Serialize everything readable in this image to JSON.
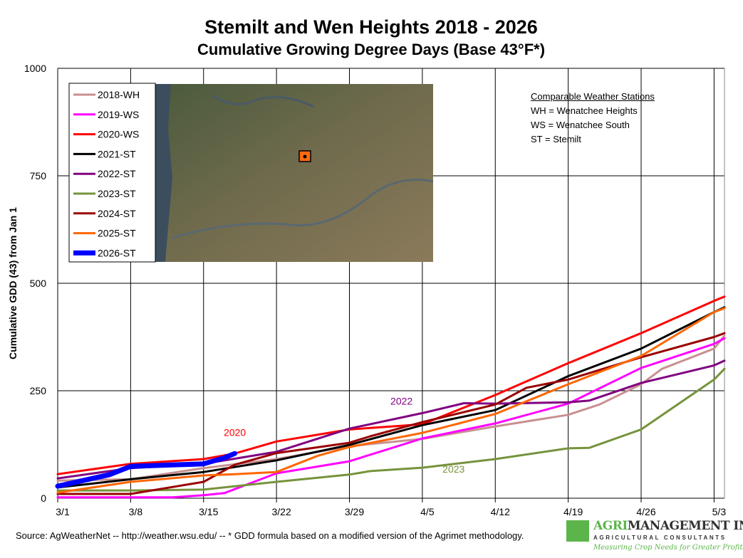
{
  "chart_data": {
    "type": "line",
    "title": "Stemilt and Wen Heights 2018 - 2026",
    "subtitle": "Cumulative Growing Degree Days (Base 43°F*)",
    "ylabel": "Cumulative GDD (43) from Jan 1",
    "xlabel": "",
    "ylim": [
      0,
      1000
    ],
    "yticks": [
      0,
      250,
      500,
      750,
      1000
    ],
    "xlim": [
      "3/1",
      "5/4"
    ],
    "xticks": [
      "3/1",
      "3/8",
      "3/15",
      "3/22",
      "3/29",
      "4/5",
      "4/12",
      "4/19",
      "4/26",
      "5/3"
    ],
    "grid": true,
    "legend_placement": "top-left",
    "series": [
      {
        "name": "2018-WH",
        "color": "#C89090",
        "width": 3,
        "x": [
          "3/1",
          "3/8",
          "3/15",
          "3/22",
          "3/29",
          "4/5",
          "4/12",
          "4/19",
          "4/22",
          "4/26",
          "4/28",
          "5/3",
          "5/4"
        ],
        "y": [
          41,
          44,
          70,
          91,
          121,
          138,
          167,
          194,
          218,
          265,
          301,
          348,
          378
        ]
      },
      {
        "name": "2019-WS",
        "color": "#FF00FF",
        "width": 3,
        "x": [
          "3/1",
          "3/12",
          "3/15",
          "3/17",
          "3/22",
          "3/29",
          "4/5",
          "4/12",
          "4/19",
          "4/26",
          "5/3",
          "5/4"
        ],
        "y": [
          2,
          2,
          7,
          12,
          58,
          86,
          139,
          174,
          220,
          303,
          359,
          372
        ]
      },
      {
        "name": "2020-WS",
        "color": "#FF0000",
        "width": 3,
        "x": [
          "3/1",
          "3/8",
          "3/15",
          "3/18",
          "3/22",
          "3/29",
          "4/5",
          "4/12",
          "4/19",
          "4/26",
          "5/3",
          "5/4"
        ],
        "y": [
          56,
          80,
          91,
          104,
          132,
          160,
          172,
          240,
          314,
          384,
          459,
          469
        ]
      },
      {
        "name": "2021-ST",
        "color": "#000000",
        "width": 3,
        "x": [
          "3/1",
          "3/8",
          "3/15",
          "3/22",
          "3/29",
          "4/5",
          "4/12",
          "4/19",
          "4/26",
          "5/3",
          "5/4"
        ],
        "y": [
          25,
          44,
          61,
          88,
          124,
          170,
          205,
          284,
          348,
          433,
          444
        ]
      },
      {
        "name": "2022-ST",
        "color": "#800080",
        "width": 3,
        "x": [
          "3/1",
          "3/8",
          "3/15",
          "3/22",
          "3/29",
          "4/5",
          "4/9",
          "4/12",
          "4/19",
          "4/21",
          "4/26",
          "5/3",
          "5/4"
        ],
        "y": [
          46,
          70,
          80,
          108,
          162,
          198,
          221,
          220,
          223,
          227,
          268,
          309,
          320
        ]
      },
      {
        "name": "2023-ST",
        "color": "#76933C",
        "width": 3,
        "x": [
          "3/1",
          "3/8",
          "3/15",
          "3/22",
          "3/29",
          "3/31",
          "4/5",
          "4/12",
          "4/19",
          "4/21",
          "4/26",
          "5/3",
          "5/4"
        ],
        "y": [
          18,
          18,
          20,
          38,
          55,
          63,
          71,
          91,
          116,
          117,
          160,
          276,
          301
        ]
      },
      {
        "name": "2024-ST",
        "color": "#990000",
        "width": 3,
        "x": [
          "3/1",
          "3/8",
          "3/15",
          "3/18",
          "3/22",
          "3/29",
          "3/31",
          "4/5",
          "4/12",
          "4/15",
          "4/19",
          "4/26",
          "5/3",
          "5/4"
        ],
        "y": [
          10,
          10,
          38,
          78,
          105,
          129,
          144,
          177,
          218,
          257,
          276,
          328,
          375,
          384
        ]
      },
      {
        "name": "2025-ST",
        "color": "#FF6600",
        "width": 3,
        "x": [
          "3/1",
          "3/8",
          "3/15",
          "3/18",
          "3/22",
          "3/26",
          "3/29",
          "4/5",
          "4/12",
          "4/19",
          "4/26",
          "5/3",
          "5/4"
        ],
        "y": [
          13,
          38,
          53,
          56,
          61,
          99,
          119,
          152,
          196,
          265,
          331,
          433,
          442
        ]
      },
      {
        "name": "2026-ST",
        "color": "#0000FF",
        "width": 7,
        "x": [
          "3/1",
          "3/6",
          "3/8",
          "3/15",
          "3/17",
          "3/18"
        ],
        "y": [
          28,
          55,
          74,
          80,
          94,
          104
        ]
      }
    ],
    "annotations": [
      {
        "text": "2020",
        "color": "#FF0000",
        "x": "3/18",
        "y": 145
      },
      {
        "text": "2022",
        "color": "#800080",
        "x": "4/3",
        "y": 218
      },
      {
        "text": "2023",
        "color": "#76933C",
        "x": "4/8",
        "y": 60
      }
    ]
  },
  "stations": {
    "heading": "Comparable Weather Stations",
    "lines": [
      "WH = Wenatchee Heights",
      "WS = Wenatchee South",
      "ST = Stemilt"
    ]
  },
  "source": "Source:  AgWeatherNet -- http://weather.wsu.edu/ --  * GDD formula based on a modified version of the Agrimet methodology.",
  "logo": {
    "name_a": "AGRI",
    "name_b": "MANAGEMENT INC.",
    "reg": "®",
    "sub": "AGRICULTURAL CONSULTANTS",
    "tag": "Measuring Crop Needs for Greater Profits"
  }
}
